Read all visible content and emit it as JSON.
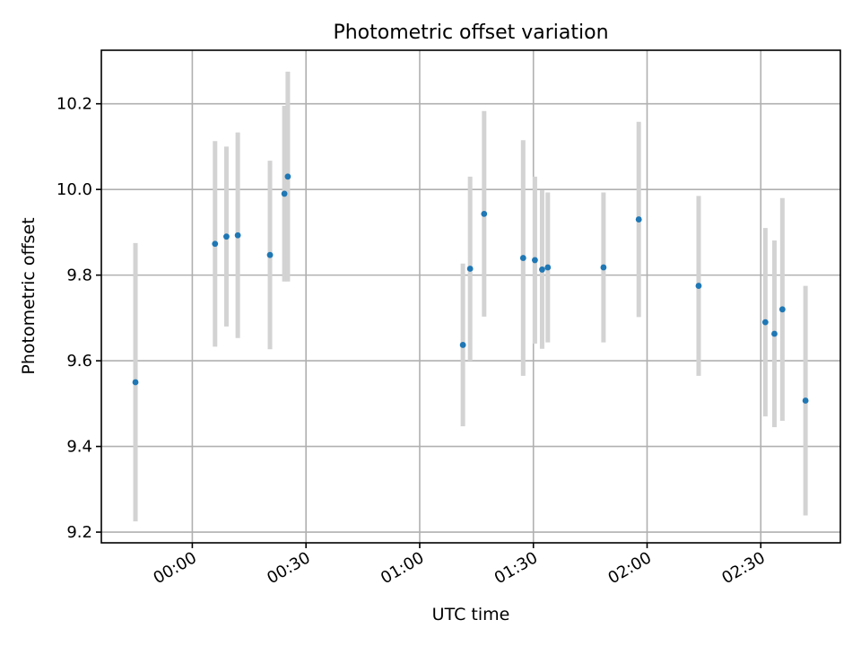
{
  "chart_data": {
    "type": "scatter",
    "title": "Photometric offset variation",
    "xlabel": "UTC time",
    "ylabel": "Photometric offset",
    "x_unit": "minutes after 00:00 UTC",
    "xlim": [
      -24,
      171
    ],
    "ylim": [
      9.175,
      10.325
    ],
    "x_ticks": [
      {
        "value": 0,
        "label": "00:00"
      },
      {
        "value": 30,
        "label": "00:30"
      },
      {
        "value": 60,
        "label": "01:00"
      },
      {
        "value": 90,
        "label": "01:30"
      },
      {
        "value": 120,
        "label": "02:00"
      },
      {
        "value": 150,
        "label": "02:30"
      }
    ],
    "y_ticks": [
      {
        "value": 9.2,
        "label": "9.2"
      },
      {
        "value": 9.4,
        "label": "9.4"
      },
      {
        "value": 9.6,
        "label": "9.6"
      },
      {
        "value": 9.8,
        "label": "9.8"
      },
      {
        "value": 10.0,
        "label": "10.0"
      },
      {
        "value": 10.2,
        "label": "10.2"
      }
    ],
    "grid": true,
    "marker_color": "#1f77b4",
    "errorbar_color": "#d3d3d3",
    "series": [
      {
        "points": [
          {
            "x": -15,
            "y": 9.55,
            "err": 0.325
          },
          {
            "x": 6,
            "y": 9.873,
            "err": 0.24
          },
          {
            "x": 9,
            "y": 9.89,
            "err": 0.21
          },
          {
            "x": 12,
            "y": 9.893,
            "err": 0.24
          },
          {
            "x": 20.5,
            "y": 9.847,
            "err": 0.22
          },
          {
            "x": 24.3,
            "y": 9.99,
            "err": 0.205
          },
          {
            "x": 25.2,
            "y": 10.03,
            "err": 0.245
          },
          {
            "x": 71.4,
            "y": 9.637,
            "err": 0.19
          },
          {
            "x": 73.3,
            "y": 9.815,
            "err": 0.215
          },
          {
            "x": 77,
            "y": 9.943,
            "err": 0.24
          },
          {
            "x": 87.3,
            "y": 9.84,
            "err": 0.275
          },
          {
            "x": 90.4,
            "y": 9.835,
            "err": 0.195
          },
          {
            "x": 92.3,
            "y": 9.813,
            "err": 0.185
          },
          {
            "x": 93.8,
            "y": 9.818,
            "err": 0.175
          },
          {
            "x": 108.5,
            "y": 9.818,
            "err": 0.175
          },
          {
            "x": 117.8,
            "y": 9.93,
            "err": 0.228
          },
          {
            "x": 133.6,
            "y": 9.775,
            "err": 0.21
          },
          {
            "x": 151.2,
            "y": 9.69,
            "err": 0.22
          },
          {
            "x": 153.6,
            "y": 9.663,
            "err": 0.218
          },
          {
            "x": 155.7,
            "y": 9.72,
            "err": 0.26
          },
          {
            "x": 161.8,
            "y": 9.507,
            "err": 0.268
          }
        ]
      }
    ]
  }
}
